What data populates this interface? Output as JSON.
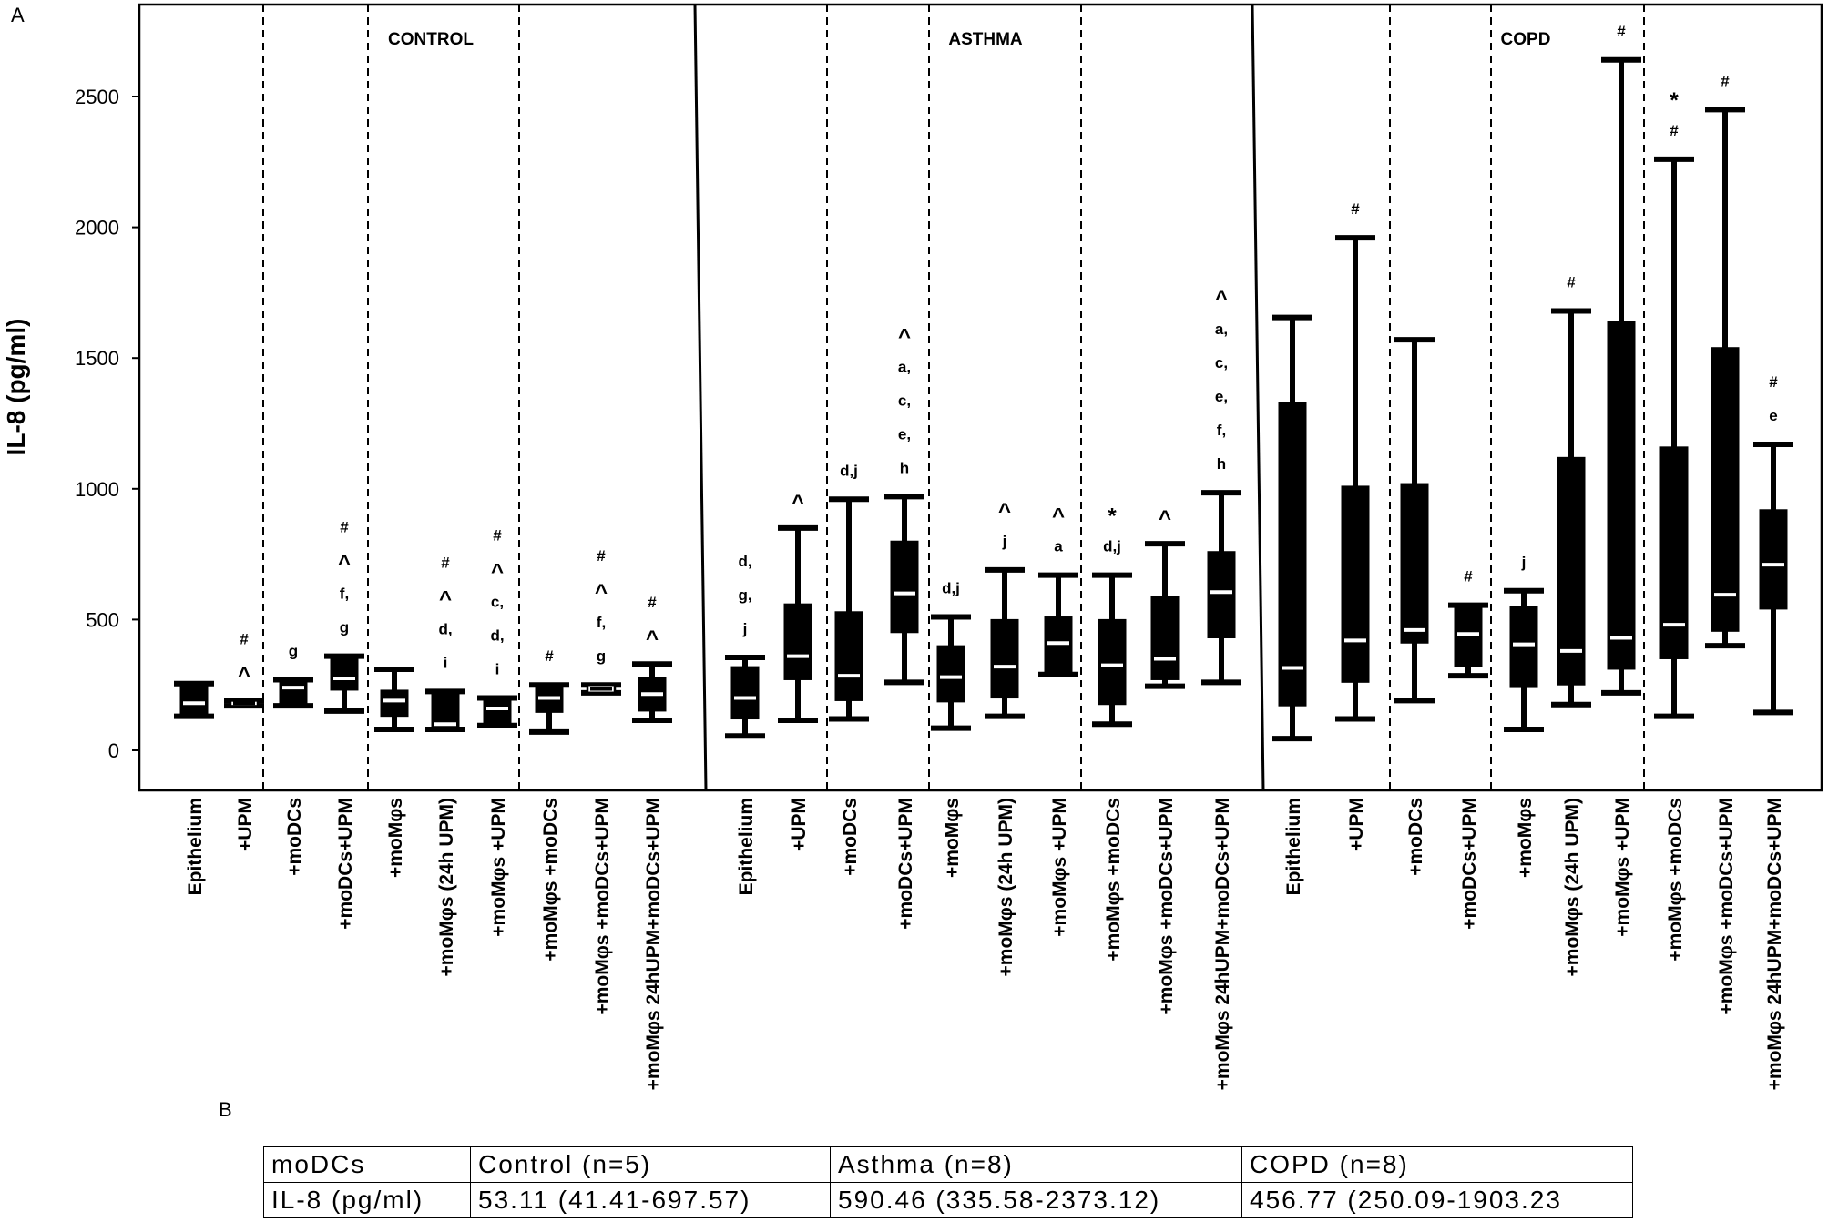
{
  "panel_labels": {
    "a": "A",
    "b": "B"
  },
  "chart_data": {
    "type": "box",
    "ylabel": "IL-8 (pg/ml)",
    "yticks": [
      0,
      500,
      1000,
      1500,
      2000,
      2500
    ],
    "ylim": [
      -150,
      2870
    ],
    "groups": [
      {
        "name": "CONTROL",
        "categories": [
          "Epithelium",
          "+UPM",
          "+moDCs",
          "+moDCs+UPM",
          "+moMφs",
          "+moMφs (24h UPM)",
          "+moMφs +UPM",
          "+moMφs +moDCs",
          "+moMφs +moDCs+UPM",
          "+moMφs 24hUPM+moDCs+UPM"
        ],
        "boxes": [
          {
            "whisker_low": 130,
            "q1": 130,
            "median": 180,
            "q3": 255,
            "whisker_high": 255,
            "fill": "black",
            "annotations": []
          },
          {
            "whisker_low": 170,
            "q1": 170,
            "median": 180,
            "q3": 190,
            "whisker_high": 190,
            "fill": "white",
            "annotations": [
              "^",
              "#"
            ]
          },
          {
            "whisker_low": 170,
            "q1": 170,
            "median": 240,
            "q3": 270,
            "whisker_high": 270,
            "fill": "black",
            "annotations": [
              "g"
            ]
          },
          {
            "whisker_low": 150,
            "q1": 230,
            "median": 275,
            "q3": 360,
            "whisker_high": 360,
            "fill": "black",
            "annotations": [
              "g",
              "f,",
              "^",
              "#"
            ]
          },
          {
            "whisker_low": 80,
            "q1": 130,
            "median": 190,
            "q3": 230,
            "whisker_high": 310,
            "fill": "black",
            "annotations": []
          },
          {
            "whisker_low": 80,
            "q1": 80,
            "median": 100,
            "q3": 225,
            "whisker_high": 225,
            "fill": "black",
            "annotations": [
              "i",
              "d,",
              "^",
              "#"
            ]
          },
          {
            "whisker_low": 95,
            "q1": 95,
            "median": 160,
            "q3": 200,
            "whisker_high": 200,
            "fill": "black",
            "annotations": [
              "i",
              "d,",
              "c,",
              "^",
              "#"
            ]
          },
          {
            "whisker_low": 70,
            "q1": 145,
            "median": 200,
            "q3": 250,
            "whisker_high": 250,
            "fill": "black",
            "annotations": [
              "#"
            ]
          },
          {
            "whisker_low": 220,
            "q1": 220,
            "median": 235,
            "q3": 250,
            "whisker_high": 250,
            "fill": "white",
            "annotations": [
              "g",
              "f,",
              "^",
              "#"
            ]
          },
          {
            "whisker_low": 115,
            "q1": 150,
            "median": 215,
            "q3": 280,
            "whisker_high": 330,
            "fill": "black",
            "annotations": [
              "^",
              "#"
            ]
          }
        ]
      },
      {
        "name": "ASTHMA",
        "categories": [
          "Epithelium",
          "+UPM",
          "+moDCs",
          "+moDCs+UPM",
          "+moMφs",
          "+moMφs (24h UPM)",
          "+moMφs +UPM",
          "+moMφs +moDCs",
          "+moMφs +moDCs+UPM",
          "+moMφs 24hUPM+moDCs+UPM"
        ],
        "boxes": [
          {
            "whisker_low": 55,
            "q1": 120,
            "median": 200,
            "q3": 320,
            "whisker_high": 355,
            "fill": "black",
            "annotations": [
              "j",
              "g,",
              "d,"
            ]
          },
          {
            "whisker_low": 115,
            "q1": 270,
            "median": 360,
            "q3": 560,
            "whisker_high": 850,
            "fill": "black",
            "annotations": [
              "^"
            ]
          },
          {
            "whisker_low": 120,
            "q1": 190,
            "median": 285,
            "q3": 530,
            "whisker_high": 960,
            "fill": "black",
            "annotations": [
              "d,j"
            ]
          },
          {
            "whisker_low": 260,
            "q1": 450,
            "median": 600,
            "q3": 800,
            "whisker_high": 970,
            "fill": "black",
            "annotations": [
              "h",
              "e,",
              "c,",
              "a,",
              "^"
            ]
          },
          {
            "whisker_low": 85,
            "q1": 185,
            "median": 280,
            "q3": 400,
            "whisker_high": 510,
            "fill": "black",
            "annotations": [
              "d,j"
            ]
          },
          {
            "whisker_low": 130,
            "q1": 200,
            "median": 320,
            "q3": 500,
            "whisker_high": 690,
            "fill": "black",
            "annotations": [
              "j",
              "^"
            ]
          },
          {
            "whisker_low": 290,
            "q1": 290,
            "median": 410,
            "q3": 510,
            "whisker_high": 670,
            "fill": "black",
            "annotations": [
              "a",
              "^"
            ]
          },
          {
            "whisker_low": 100,
            "q1": 175,
            "median": 325,
            "q3": 500,
            "whisker_high": 670,
            "fill": "black",
            "annotations": [
              "d,j",
              "*"
            ]
          },
          {
            "whisker_low": 245,
            "q1": 270,
            "median": 350,
            "q3": 590,
            "whisker_high": 790,
            "fill": "black",
            "annotations": [
              "^"
            ]
          },
          {
            "whisker_low": 260,
            "q1": 430,
            "median": 605,
            "q3": 760,
            "whisker_high": 985,
            "fill": "black",
            "annotations": [
              "h",
              "f,",
              "e,",
              "c,",
              "a,",
              "^"
            ]
          }
        ]
      },
      {
        "name": "COPD",
        "categories": [
          "Epithelium",
          "+UPM",
          "+moDCs",
          "+moDCs+UPM",
          "+moMφs",
          "+moMφs (24h UPM)",
          "+moMφs +UPM",
          "+moMφs +moDCs",
          "+moMφs +moDCs+UPM",
          "+moMφs 24hUPM+moDCs+UPM"
        ],
        "boxes": [
          {
            "whisker_low": 45,
            "q1": 170,
            "median": 315,
            "q3": 1330,
            "whisker_high": 1655,
            "fill": "black",
            "annotations": []
          },
          {
            "whisker_low": 120,
            "q1": 260,
            "median": 420,
            "q3": 1010,
            "whisker_high": 1960,
            "fill": "black",
            "annotations": [
              "#"
            ]
          },
          {
            "whisker_low": 190,
            "q1": 410,
            "median": 460,
            "q3": 1020,
            "whisker_high": 1570,
            "fill": "black",
            "annotations": []
          },
          {
            "whisker_low": 285,
            "q1": 320,
            "median": 445,
            "q3": 555,
            "whisker_high": 555,
            "fill": "black",
            "annotations": [
              "#"
            ]
          },
          {
            "whisker_low": 80,
            "q1": 240,
            "median": 405,
            "q3": 550,
            "whisker_high": 610,
            "fill": "black",
            "annotations": [
              "j"
            ]
          },
          {
            "whisker_low": 175,
            "q1": 250,
            "median": 380,
            "q3": 1120,
            "whisker_high": 1680,
            "fill": "black",
            "annotations": [
              "#"
            ]
          },
          {
            "whisker_low": 220,
            "q1": 310,
            "median": 430,
            "q3": 1640,
            "whisker_high": 2640,
            "fill": "black",
            "annotations": [
              "#"
            ]
          },
          {
            "whisker_low": 130,
            "q1": 350,
            "median": 480,
            "q3": 1160,
            "whisker_high": 2260,
            "fill": "black",
            "annotations": [
              "#",
              "*"
            ]
          },
          {
            "whisker_low": 400,
            "q1": 455,
            "median": 595,
            "q3": 1540,
            "whisker_high": 2450,
            "fill": "black",
            "annotations": [
              "#"
            ]
          },
          {
            "whisker_low": 145,
            "q1": 540,
            "median": 710,
            "q3": 920,
            "whisker_high": 1170,
            "fill": "black",
            "annotations": [
              "e",
              "#"
            ]
          }
        ]
      }
    ]
  },
  "table": {
    "rows": [
      [
        "moDCs",
        "Control (n=5)",
        "Asthma (n=8)",
        "COPD (n=8)"
      ],
      [
        "IL-8 (pg/ml)",
        "53.11 (41.41-697.57)",
        "590.46 (335.58-2373.12)",
        "456.77 (250.09-1903.23"
      ]
    ]
  }
}
